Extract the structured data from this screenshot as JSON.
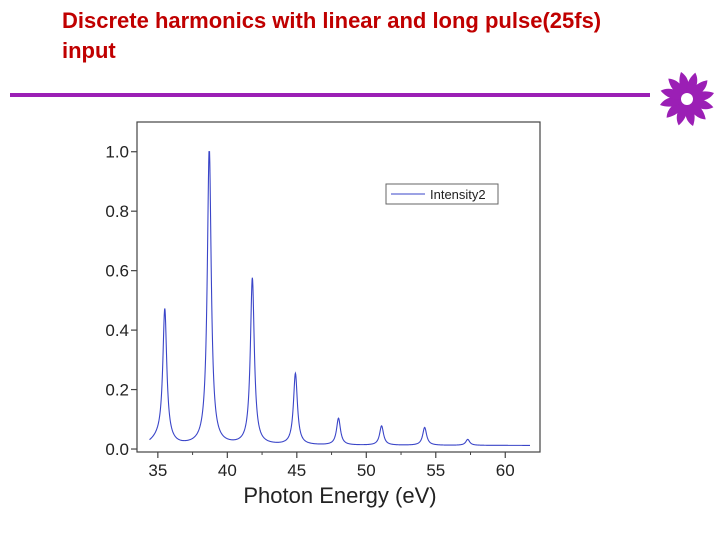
{
  "slide": {
    "title": "Discrete harmonics with linear and long pulse(25fs) input"
  },
  "colors": {
    "title": "#c00000",
    "rule": "#9b1fb5",
    "logo": "#9b1fb5",
    "series": "#3a45c8"
  },
  "logo_icon": "flower-logo-icon",
  "chart_data": {
    "type": "line",
    "title": "",
    "xlabel": "Photon Energy (eV)",
    "ylabel": "",
    "xlim": [
      33.5,
      62.5
    ],
    "ylim": [
      -0.01,
      1.1
    ],
    "xticks": [
      35,
      40,
      45,
      50,
      55,
      60
    ],
    "xtick_labels": [
      "35",
      "40",
      "45",
      "50",
      "55",
      "60"
    ],
    "yticks": [
      0.0,
      0.2,
      0.4,
      0.6,
      0.8,
      1.0
    ],
    "ytick_labels": [
      "0.0",
      "0.2",
      "0.4",
      "0.6",
      "0.8",
      "1.0"
    ],
    "grid": false,
    "legend": {
      "placement": "top-right",
      "entries": [
        "Intensity2"
      ]
    },
    "series": [
      {
        "name": "Intensity2",
        "peaks": [
          {
            "x": 35.5,
            "y": 0.44
          },
          {
            "x": 38.7,
            "y": 1.0
          },
          {
            "x": 41.8,
            "y": 0.56
          },
          {
            "x": 44.9,
            "y": 0.24
          },
          {
            "x": 48.0,
            "y": 0.09
          },
          {
            "x": 51.1,
            "y": 0.065
          },
          {
            "x": 54.2,
            "y": 0.06
          },
          {
            "x": 57.3,
            "y": 0.02
          }
        ]
      }
    ]
  }
}
